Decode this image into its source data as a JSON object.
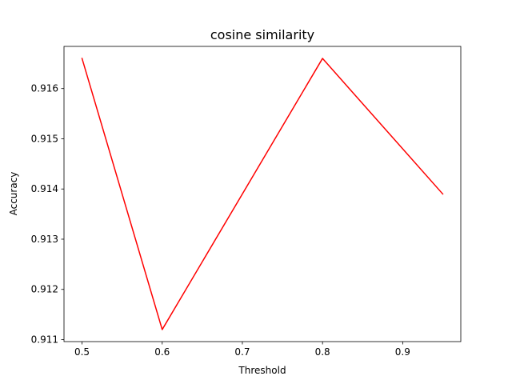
{
  "chart_data": {
    "type": "line",
    "title": "cosine similarity",
    "xlabel": "Threshold",
    "ylabel": "Accuracy",
    "grid": false,
    "legend": "none",
    "xlim": [
      0.4775,
      0.9725
    ],
    "ylim": [
      0.91096,
      0.91684
    ],
    "xticks": [
      0.5,
      0.6,
      0.7,
      0.8,
      0.9
    ],
    "xtick_labels": [
      "0.5",
      "0.6",
      "0.7",
      "0.8",
      "0.9"
    ],
    "yticks": [
      0.911,
      0.912,
      0.913,
      0.914,
      0.915,
      0.916
    ],
    "ytick_labels": [
      "0.911",
      "0.912",
      "0.913",
      "0.914",
      "0.915",
      "0.916"
    ],
    "series": [
      {
        "color": "#ff0000",
        "x": [
          0.5,
          0.6,
          0.8,
          0.95
        ],
        "y": [
          0.9166,
          0.9112,
          0.9166,
          0.9139
        ]
      }
    ]
  }
}
